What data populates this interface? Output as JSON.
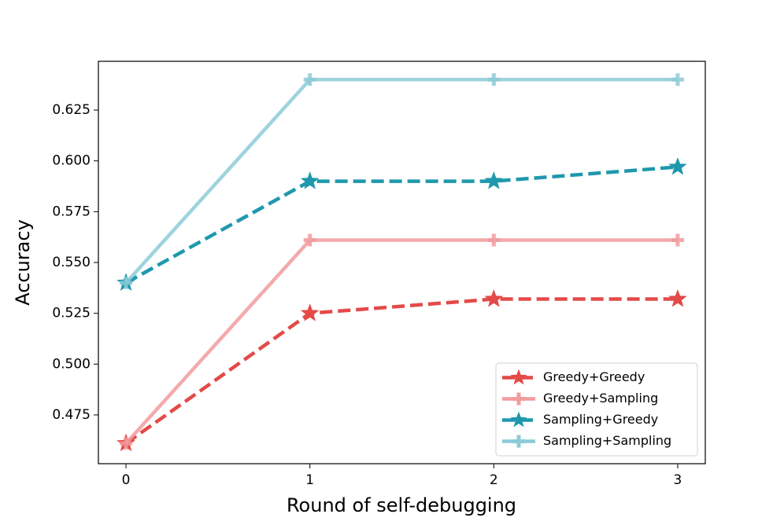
{
  "chart_data": {
    "type": "line",
    "xlabel": "Round of self-debugging",
    "ylabel": "Accuracy",
    "x": [
      0,
      1,
      2,
      3
    ],
    "xlim": [
      -0.15,
      3.15
    ],
    "xticks": [
      0,
      1,
      2,
      3
    ],
    "ylim": [
      0.451,
      0.649
    ],
    "yticks": [
      0.475,
      {
        "value": 0.5,
        "label": "0.500"
      },
      0.525,
      {
        "value": 0.55,
        "label": "0.550"
      },
      0.575,
      {
        "value": 0.6,
        "label": "0.600"
      },
      0.625
    ],
    "grid": false,
    "legend": "lower right",
    "series": [
      {
        "name": "Greedy+Greedy",
        "color": "#e34a48",
        "linestyle": "dashed",
        "marker": "star",
        "values": [
          0.461,
          0.525,
          0.532,
          0.532
        ]
      },
      {
        "name": "Greedy+Sampling",
        "color": "#f29b9d",
        "linestyle": "solid",
        "marker": "plus",
        "values": [
          0.461,
          0.561,
          0.561,
          0.561
        ]
      },
      {
        "name": "Sampling+Greedy",
        "color": "#1f98ad",
        "linestyle": "dashed",
        "marker": "star",
        "values": [
          0.54,
          0.59,
          0.59,
          0.597
        ]
      },
      {
        "name": "Sampling+Sampling",
        "color": "#8ccbd7",
        "linestyle": "solid",
        "marker": "plus",
        "values": [
          0.54,
          0.64,
          0.64,
          0.64
        ]
      }
    ]
  }
}
